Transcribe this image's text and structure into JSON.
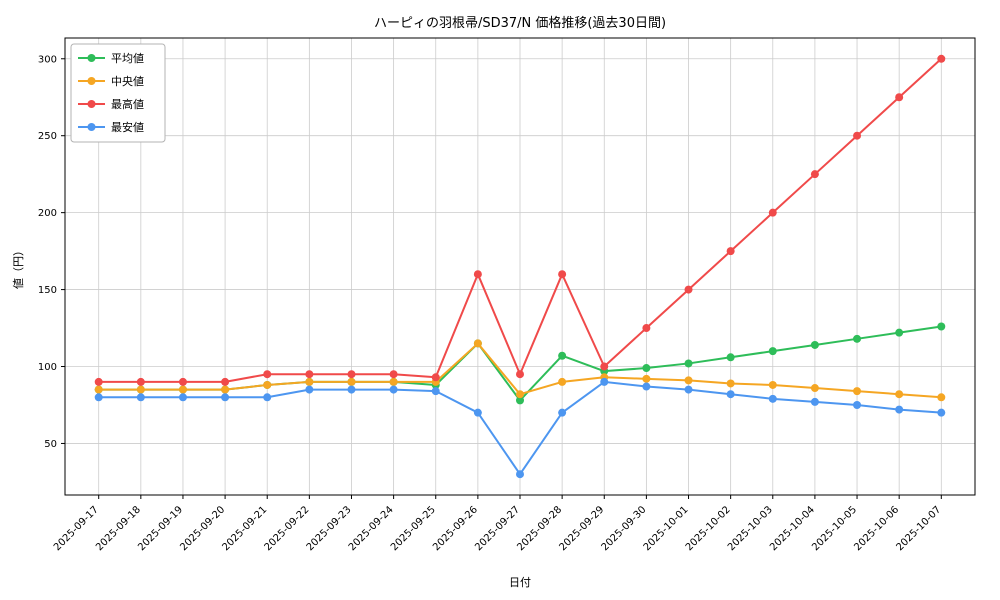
{
  "chart_data": {
    "type": "line",
    "title": "ハーピィの羽根帚/SD37/N 価格推移(過去30日間)",
    "xlabel": "日付",
    "ylabel": "値（円）",
    "categories": [
      "2025-09-17",
      "2025-09-18",
      "2025-09-19",
      "2025-09-20",
      "2025-09-21",
      "2025-09-22",
      "2025-09-23",
      "2025-09-24",
      "2025-09-25",
      "2025-09-26",
      "2025-09-27",
      "2025-09-28",
      "2025-09-29",
      "2025-09-30",
      "2025-10-01",
      "2025-10-02",
      "2025-10-03",
      "2025-10-04",
      "2025-10-05",
      "2025-10-06",
      "2025-10-07"
    ],
    "series": [
      {
        "key": "average",
        "name": "平均値",
        "color": "#2ebd59",
        "values": [
          85,
          85,
          85,
          85,
          88,
          90,
          90,
          90,
          88,
          115,
          78,
          107,
          97,
          99,
          102,
          106,
          110,
          114,
          118,
          122,
          126
        ]
      },
      {
        "key": "median",
        "name": "中央値",
        "color": "#f5a623",
        "values": [
          85,
          85,
          85,
          85,
          88,
          90,
          90,
          90,
          90,
          115,
          82,
          90,
          93,
          92,
          91,
          89,
          88,
          86,
          84,
          82,
          80
        ]
      },
      {
        "key": "max",
        "name": "最高値",
        "color": "#f04a4a",
        "values": [
          90,
          90,
          90,
          90,
          95,
          95,
          95,
          95,
          93,
          160,
          95,
          160,
          100,
          125,
          150,
          175,
          200,
          225,
          250,
          275,
          300
        ]
      },
      {
        "key": "min",
        "name": "最安値",
        "color": "#4d96f0",
        "values": [
          80,
          80,
          80,
          80,
          80,
          85,
          85,
          85,
          84,
          70,
          30,
          70,
          90,
          87,
          85,
          82,
          79,
          77,
          75,
          72,
          70
        ]
      }
    ],
    "yticks": [
      50,
      100,
      150,
      200,
      250,
      300
    ],
    "ylim": [
      16.5,
      313.5
    ],
    "xlim": [
      -0.8,
      20.8
    ],
    "grid": true,
    "legend_position": "upper left",
    "grid_color": "#cccccc",
    "spine_color": "#000000",
    "background": "#ffffff"
  }
}
